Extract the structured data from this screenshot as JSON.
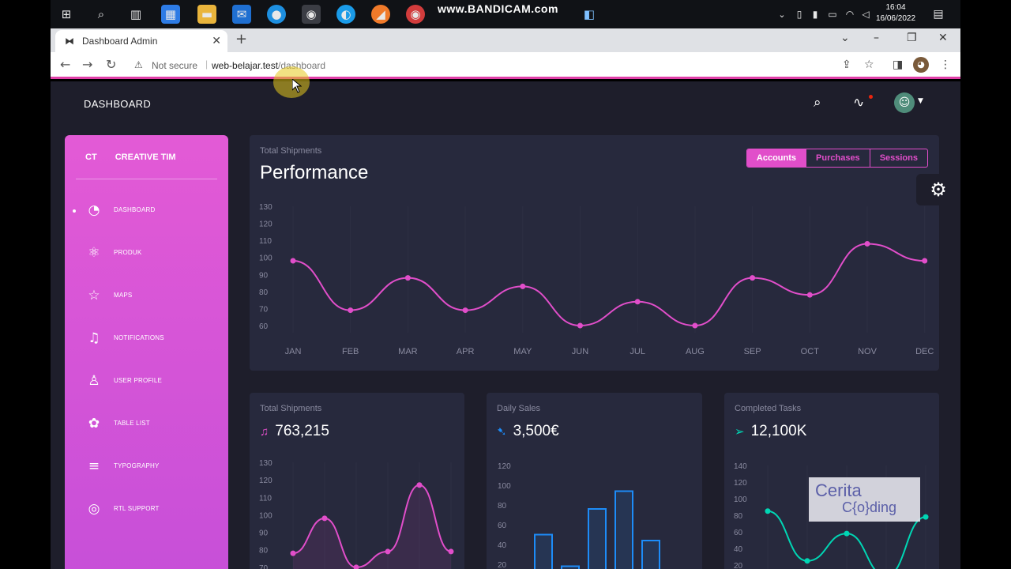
{
  "taskbar": {
    "bandicam": "www.BANDICAM.com",
    "time": "16:04",
    "date": "16/06/2022"
  },
  "browser": {
    "tab_title": "Dashboard Admin",
    "security": "Not secure",
    "url_host": "web-belajar.test",
    "url_path": "/dashboard"
  },
  "topbar": {
    "brand": "DASHBOARD"
  },
  "sidebar": {
    "logo_short": "CT",
    "logo_name": "CREATIVE TIM",
    "items": [
      {
        "label": "DASHBOARD",
        "icon": "pie-chart-icon",
        "glyph": "◔",
        "active": true
      },
      {
        "label": "PRODUK",
        "icon": "atom-icon",
        "glyph": "⚛",
        "active": false
      },
      {
        "label": "MAPS",
        "icon": "pin-icon",
        "glyph": "☆",
        "active": false
      },
      {
        "label": "NOTIFICATIONS",
        "icon": "bell-icon",
        "glyph": "♫",
        "active": false
      },
      {
        "label": "USER PROFILE",
        "icon": "user-icon",
        "glyph": "♙",
        "active": false
      },
      {
        "label": "TABLE LIST",
        "icon": "puzzle-icon",
        "glyph": "✿",
        "active": false
      },
      {
        "label": "TYPOGRAPHY",
        "icon": "align-center-icon",
        "glyph": "≡",
        "active": false
      },
      {
        "label": "RTL SUPPORT",
        "icon": "world-icon",
        "glyph": "◎",
        "active": false
      }
    ]
  },
  "main_card": {
    "subtitle": "Total Shipments",
    "title": "Performance",
    "buttons": [
      "Accounts",
      "Purchases",
      "Sessions"
    ],
    "active_button": "Accounts"
  },
  "small_cards": [
    {
      "subtitle": "Total Shipments",
      "value": "763,215",
      "icon": "bell-icon",
      "glyph": "♫",
      "color": "#e14eca"
    },
    {
      "subtitle": "Daily Sales",
      "value": "3,500€",
      "icon": "tag-icon",
      "glyph": "➷",
      "color": "#1d8cf8"
    },
    {
      "subtitle": "Completed Tasks",
      "value": "12,100K",
      "icon": "send-icon",
      "glyph": "➢",
      "color": "#00d6b4"
    }
  ],
  "colors": {
    "pink": "#e14eca",
    "blue": "#1d8cf8",
    "teal": "#00d6b4",
    "card": "#27293d",
    "background": "#1e1e2b"
  },
  "watermark": {
    "line1": "Cerita",
    "line2": "C{o}ding"
  },
  "chart_data": [
    {
      "type": "line",
      "categories": [
        "JAN",
        "FEB",
        "MAR",
        "APR",
        "MAY",
        "JUN",
        "JUL",
        "AUG",
        "SEP",
        "OCT",
        "NOV",
        "DEC"
      ],
      "values": [
        98,
        69,
        88,
        69,
        83,
        60,
        74,
        60,
        88,
        78,
        108,
        98
      ],
      "yticks": [
        60,
        70,
        80,
        90,
        100,
        110,
        120,
        130
      ],
      "ylim": [
        60,
        130
      ],
      "color": "#e14eca"
    },
    {
      "type": "line",
      "values": [
        78,
        98,
        70,
        79,
        117,
        79
      ],
      "yticks": [
        70,
        80,
        90,
        100,
        110,
        120,
        130
      ],
      "ylim": [
        60,
        130
      ],
      "color": "#e14eca"
    },
    {
      "type": "bar",
      "values": [
        50,
        18,
        76,
        94,
        44
      ],
      "yticks": [
        20,
        40,
        60,
        80,
        100,
        120
      ],
      "ylim": [
        0,
        120
      ],
      "color": "#1d8cf8"
    },
    {
      "type": "line",
      "values": [
        85,
        25,
        58,
        7,
        78
      ],
      "yticks": [
        20,
        40,
        60,
        80,
        100,
        120,
        140
      ],
      "ylim": [
        0,
        140
      ],
      "color": "#00d6b4"
    }
  ]
}
